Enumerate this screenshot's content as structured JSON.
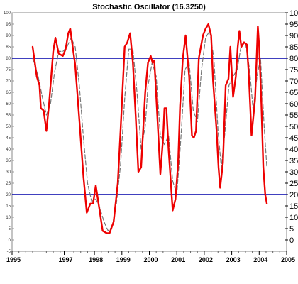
{
  "chart_data": {
    "type": "line",
    "title": "Stochastic Oscillator (16.3250)",
    "xlabel": "",
    "ylabel": "",
    "ylim": [
      -5,
      100
    ],
    "xlim": [
      1995,
      2005
    ],
    "grid": false,
    "x_tick_labels": [
      "1995",
      "1997",
      "1998",
      "1999",
      "2000",
      "2001",
      "2002",
      "2003",
      "2004",
      "2005"
    ],
    "x_tick_values": [
      1995,
      1996.9,
      1998,
      1999,
      2000,
      2001,
      2002,
      2003,
      2004,
      2005
    ],
    "y_ticks_left": [
      -5,
      0,
      5,
      10,
      15,
      20,
      25,
      30,
      35,
      40,
      45,
      50,
      55,
      60,
      65,
      70,
      75,
      80,
      85,
      90,
      95,
      100
    ],
    "y_ticks_right": [
      0,
      5,
      10,
      15,
      20,
      25,
      30,
      35,
      40,
      45,
      50,
      55,
      60,
      65,
      70,
      75,
      80,
      85,
      90,
      95,
      100
    ],
    "reference_lines": [
      {
        "value": 80,
        "color": "#0000aa"
      },
      {
        "value": 20,
        "color": "#0000aa"
      }
    ],
    "series": [
      {
        "style": "solid",
        "color": "#ee0000",
        "points": [
          [
            1995.75,
            85
          ],
          [
            1995.9,
            72
          ],
          [
            1996.0,
            68
          ],
          [
            1996.05,
            58
          ],
          [
            1996.15,
            57
          ],
          [
            1996.25,
            48
          ],
          [
            1996.35,
            60
          ],
          [
            1996.5,
            83
          ],
          [
            1996.58,
            89
          ],
          [
            1996.7,
            82
          ],
          [
            1996.85,
            81
          ],
          [
            1996.95,
            84
          ],
          [
            1997.05,
            91
          ],
          [
            1997.12,
            93
          ],
          [
            1997.3,
            77
          ],
          [
            1997.45,
            53
          ],
          [
            1997.6,
            28
          ],
          [
            1997.72,
            12
          ],
          [
            1997.85,
            16
          ],
          [
            1997.95,
            16
          ],
          [
            1998.05,
            24
          ],
          [
            1998.15,
            16
          ],
          [
            1998.3,
            4
          ],
          [
            1998.45,
            3
          ],
          [
            1998.55,
            3
          ],
          [
            1998.7,
            8
          ],
          [
            1998.85,
            25
          ],
          [
            1998.95,
            48
          ],
          [
            1999.1,
            85
          ],
          [
            1999.2,
            87
          ],
          [
            1999.3,
            91
          ],
          [
            1999.4,
            78
          ],
          [
            1999.5,
            55
          ],
          [
            1999.6,
            30
          ],
          [
            1999.7,
            32
          ],
          [
            1999.85,
            65
          ],
          [
            1999.95,
            78
          ],
          [
            2000.05,
            81
          ],
          [
            2000.12,
            78
          ],
          [
            2000.18,
            79
          ],
          [
            2000.28,
            57
          ],
          [
            2000.4,
            29
          ],
          [
            2000.5,
            45
          ],
          [
            2000.55,
            58
          ],
          [
            2000.62,
            58
          ],
          [
            2000.7,
            40
          ],
          [
            2000.85,
            13
          ],
          [
            2000.95,
            18
          ],
          [
            2001.05,
            34
          ],
          [
            2001.12,
            59
          ],
          [
            2001.22,
            80
          ],
          [
            2001.32,
            90
          ],
          [
            2001.45,
            72
          ],
          [
            2001.55,
            46
          ],
          [
            2001.62,
            45
          ],
          [
            2001.7,
            48
          ],
          [
            2001.8,
            80
          ],
          [
            2001.95,
            90
          ],
          [
            2002.05,
            93
          ],
          [
            2002.15,
            95
          ],
          [
            2002.25,
            90
          ],
          [
            2002.32,
            70
          ],
          [
            2002.45,
            48
          ],
          [
            2002.52,
            32
          ],
          [
            2002.58,
            23
          ],
          [
            2002.68,
            34
          ],
          [
            2002.78,
            68
          ],
          [
            2002.88,
            71
          ],
          [
            2002.95,
            85
          ],
          [
            2003.05,
            63
          ],
          [
            2003.15,
            72
          ],
          [
            2003.22,
            85
          ],
          [
            2003.28,
            92
          ],
          [
            2003.35,
            85
          ],
          [
            2003.45,
            87
          ],
          [
            2003.55,
            86
          ],
          [
            2003.62,
            73
          ],
          [
            2003.72,
            46
          ],
          [
            2003.85,
            62
          ],
          [
            2003.95,
            94
          ],
          [
            2004.0,
            85
          ],
          [
            2004.08,
            60
          ],
          [
            2004.15,
            32
          ],
          [
            2004.22,
            20
          ],
          [
            2004.28,
            16
          ]
        ]
      },
      {
        "style": "dashed",
        "color": "#777777",
        "points": [
          [
            1995.75,
            80
          ],
          [
            1995.95,
            72
          ],
          [
            1996.1,
            63
          ],
          [
            1996.25,
            55
          ],
          [
            1996.4,
            60
          ],
          [
            1996.55,
            74
          ],
          [
            1996.7,
            83
          ],
          [
            1996.85,
            83
          ],
          [
            1997.0,
            85
          ],
          [
            1997.15,
            89
          ],
          [
            1997.3,
            85
          ],
          [
            1997.45,
            68
          ],
          [
            1997.6,
            45
          ],
          [
            1997.75,
            25
          ],
          [
            1997.9,
            17
          ],
          [
            1998.05,
            18
          ],
          [
            1998.2,
            14
          ],
          [
            1998.35,
            8
          ],
          [
            1998.5,
            4
          ],
          [
            1998.65,
            6
          ],
          [
            1998.8,
            16
          ],
          [
            1998.95,
            33
          ],
          [
            1999.1,
            62
          ],
          [
            1999.25,
            84
          ],
          [
            1999.4,
            84
          ],
          [
            1999.55,
            65
          ],
          [
            1999.7,
            40
          ],
          [
            1999.85,
            50
          ],
          [
            1999.95,
            68
          ],
          [
            2000.1,
            78
          ],
          [
            2000.25,
            72
          ],
          [
            2000.4,
            46
          ],
          [
            2000.55,
            42
          ],
          [
            2000.7,
            46
          ],
          [
            2000.85,
            26
          ],
          [
            2001.0,
            20
          ],
          [
            2001.15,
            45
          ],
          [
            2001.3,
            75
          ],
          [
            2001.45,
            78
          ],
          [
            2001.6,
            57
          ],
          [
            2001.75,
            52
          ],
          [
            2001.9,
            75
          ],
          [
            2002.05,
            89
          ],
          [
            2002.2,
            92
          ],
          [
            2002.35,
            80
          ],
          [
            2002.5,
            48
          ],
          [
            2002.62,
            32
          ],
          [
            2002.75,
            47
          ],
          [
            2002.9,
            68
          ],
          [
            2003.05,
            72
          ],
          [
            2003.2,
            75
          ],
          [
            2003.35,
            86
          ],
          [
            2003.5,
            87
          ],
          [
            2003.65,
            75
          ],
          [
            2003.78,
            57
          ],
          [
            2003.92,
            72
          ],
          [
            2004.05,
            80
          ],
          [
            2004.18,
            50
          ],
          [
            2004.28,
            32
          ]
        ]
      }
    ]
  }
}
